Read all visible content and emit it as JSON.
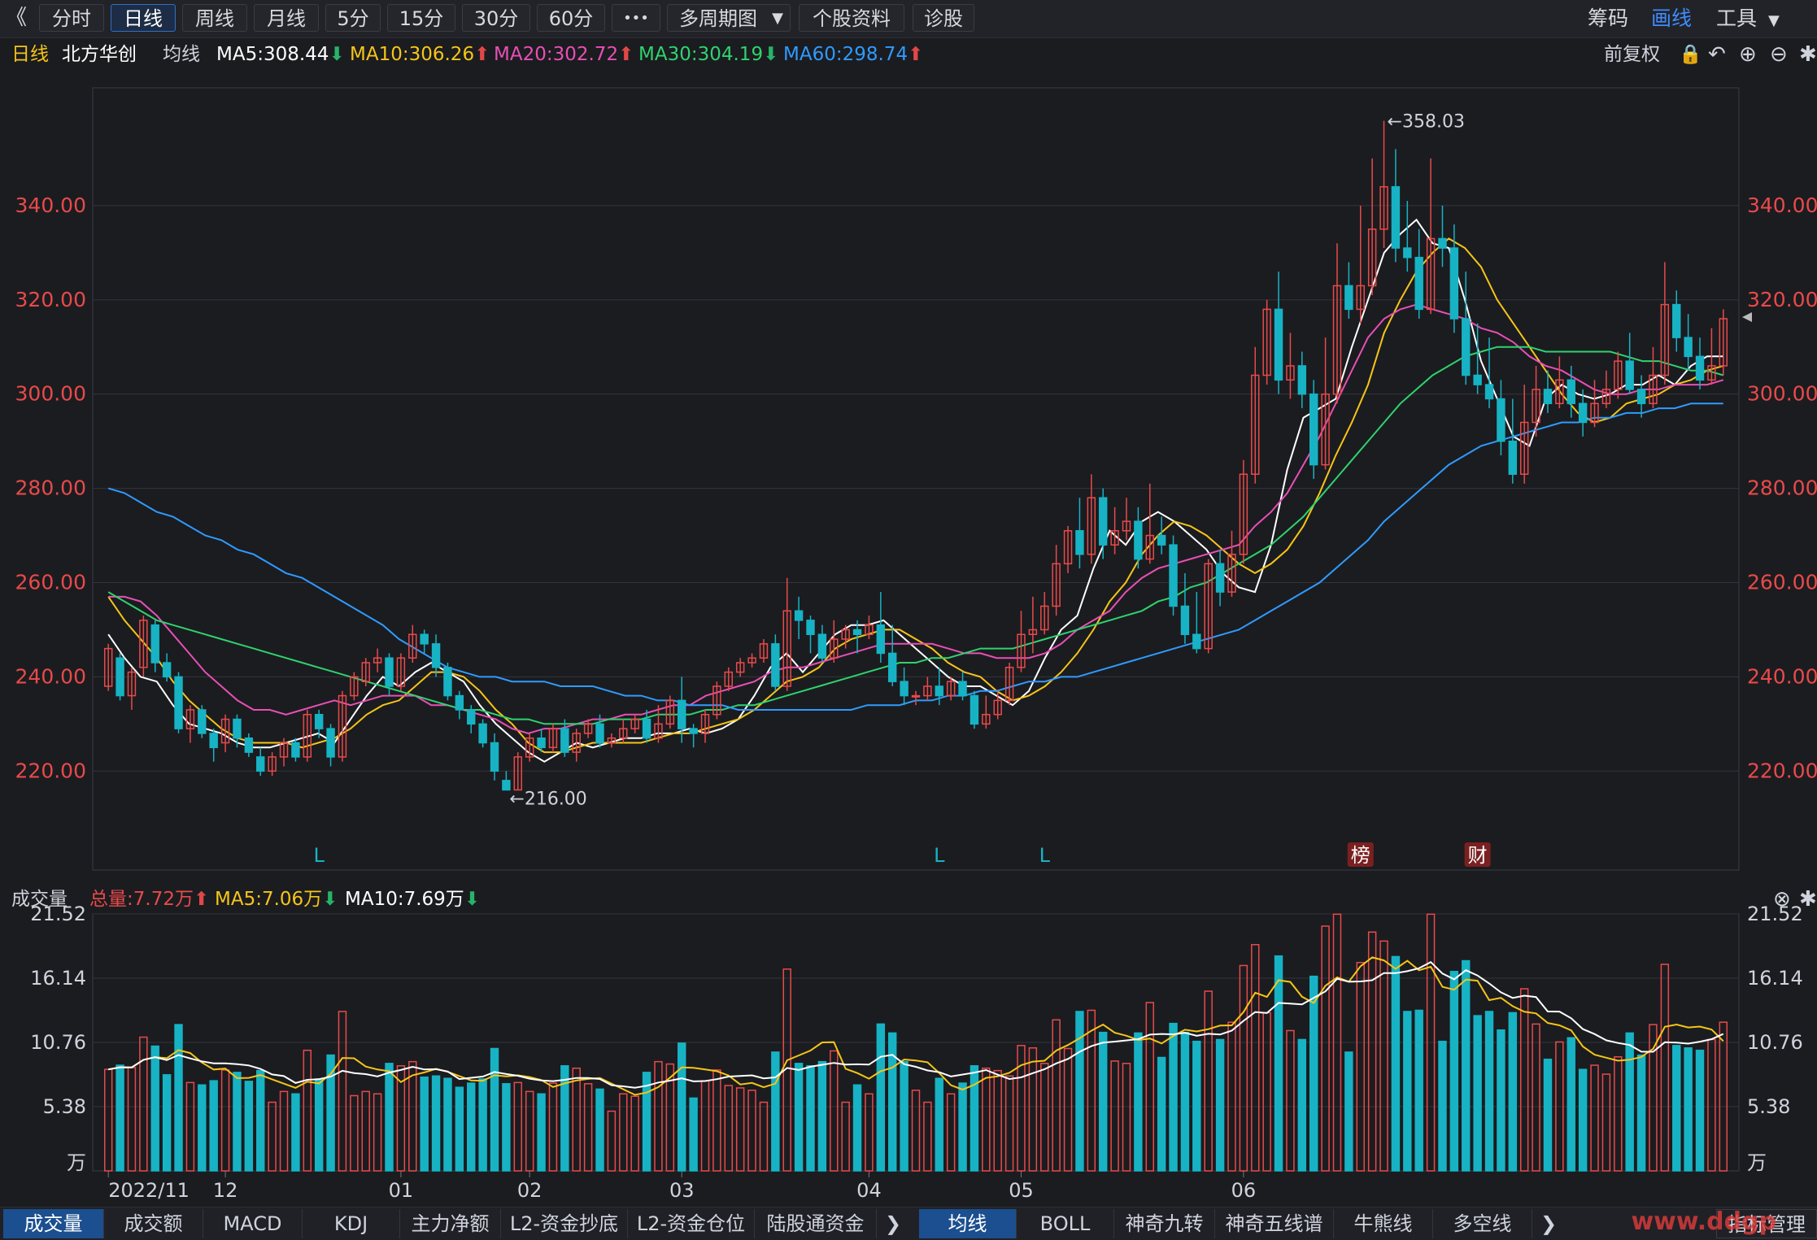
{
  "toolbar": {
    "collapse": "《",
    "periods": [
      "分时",
      "日线",
      "周线",
      "月线",
      "5分",
      "15分",
      "30分",
      "60分"
    ],
    "active_period": "日线",
    "more": "•••",
    "multi_period": "多周期图",
    "stock_info": "个股资料",
    "diagnose": "诊股",
    "right_items": [
      "筹码",
      "画线",
      "工具"
    ]
  },
  "header": {
    "period_label": "日线",
    "stock_name": "北方华创",
    "avg_label": "均线",
    "ma": [
      {
        "label": "MA5:308.44",
        "dir": "down",
        "color": "#ffffff"
      },
      {
        "label": "MA10:306.26",
        "dir": "up",
        "color": "#f5c518"
      },
      {
        "label": "MA20:302.72",
        "dir": "up",
        "color": "#e84fb5"
      },
      {
        "label": "MA30:304.19",
        "dir": "down",
        "color": "#2fd36e"
      },
      {
        "label": "MA60:298.74",
        "dir": "up",
        "color": "#2f9bff"
      }
    ],
    "adjust": "前复权"
  },
  "volume_header": {
    "title": "成交量",
    "total": "总量:7.72万",
    "ma5": "MA5:7.06万",
    "ma10": "MA10:7.69万"
  },
  "bottom_tabs_left": [
    "成交量",
    "成交额",
    "MACD",
    "KDJ",
    "主力净额",
    "L2-资金抄底",
    "L2-资金仓位",
    "陆股通资金"
  ],
  "bottom_tabs_right": [
    "均线",
    "BOLL",
    "神奇九转",
    "神奇五线谱",
    "牛熊线",
    "多空线"
  ],
  "bottom_tabs_more": "指标管理",
  "watermark": "www.ddgp",
  "chart_data": {
    "type": "candlestick",
    "price_axis": {
      "ticks": [
        "340.00",
        "320.00",
        "300.00",
        "280.00",
        "260.00",
        "240.00",
        "220.00"
      ],
      "ylim": [
        199,
        365
      ]
    },
    "volume_axis": {
      "ticks": [
        "21.52",
        "16.14",
        "10.76",
        "5.38"
      ],
      "unit": "万",
      "ylim": [
        0,
        21.52
      ]
    },
    "x_ticks": [
      "2022/11",
      "12",
      "01",
      "02",
      "03",
      "04",
      "05",
      "06"
    ],
    "annotations": {
      "high": "←358.03",
      "low": "←216.00",
      "markers": [
        "L",
        "L",
        "L",
        "榜",
        "财"
      ]
    },
    "colors": {
      "up": "#e84a4a",
      "down": "#17b3c4",
      "ma5": "#ffffff",
      "ma10": "#f5c518",
      "ma20": "#e84fb5",
      "ma30": "#2fd36e",
      "ma60": "#2f9bff"
    },
    "series": [
      {
        "name": "MA5",
        "values": [
          249,
          244,
          240,
          239,
          234,
          230,
          229,
          228,
          226,
          225,
          225,
          226,
          227,
          228,
          226,
          231,
          236,
          240,
          238,
          241,
          243,
          241,
          239,
          234,
          230,
          227,
          224,
          222,
          224,
          226,
          225,
          226,
          227,
          227,
          228,
          228,
          229,
          228,
          229,
          231,
          236,
          242,
          245,
          241,
          245,
          249,
          251,
          251,
          252,
          249,
          246,
          243,
          240,
          238,
          238,
          236,
          234,
          237,
          244,
          250,
          253,
          263,
          271,
          268,
          273,
          275,
          273,
          270,
          267,
          262,
          259,
          258,
          268,
          284,
          295,
          297,
          299,
          310,
          320,
          330,
          334,
          337,
          332,
          331,
          320,
          307,
          299,
          291,
          289,
          299,
          302,
          300,
          299,
          300,
          302,
          302,
          304,
          302,
          306,
          308,
          308
        ]
      },
      {
        "name": "MA10",
        "values": [
          257,
          252,
          248,
          244,
          239,
          235,
          232,
          229,
          227,
          226,
          226,
          226,
          225,
          226,
          227,
          229,
          232,
          234,
          235,
          238,
          241,
          241,
          240,
          237,
          233,
          230,
          226,
          224,
          224,
          225,
          226,
          226,
          226,
          226,
          227,
          228,
          228,
          229,
          230,
          231,
          233,
          236,
          239,
          240,
          242,
          246,
          248,
          249,
          250,
          250,
          248,
          246,
          243,
          241,
          240,
          237,
          235,
          236,
          238,
          241,
          245,
          250,
          256,
          260,
          266,
          270,
          273,
          272,
          270,
          267,
          264,
          262,
          264,
          267,
          272,
          279,
          287,
          294,
          302,
          313,
          320,
          326,
          330,
          333,
          331,
          327,
          320,
          315,
          310,
          305,
          300,
          296,
          294,
          295,
          298,
          299,
          300,
          302,
          303,
          305,
          306
        ]
      },
      {
        "name": "MA20",
        "values": [
          257,
          257,
          256,
          253,
          249,
          245,
          241,
          238,
          235,
          233,
          233,
          232,
          233,
          234,
          235,
          234,
          235,
          236,
          236,
          236,
          234,
          234,
          233,
          232,
          231,
          229,
          228,
          229,
          229,
          230,
          231,
          231,
          232,
          232,
          233,
          234,
          234,
          236,
          237,
          238,
          239,
          241,
          242,
          242,
          243,
          244,
          245,
          246,
          247,
          247,
          247,
          247,
          246,
          245,
          245,
          244,
          244,
          244,
          245,
          247,
          250,
          252,
          254,
          258,
          261,
          263,
          264,
          265,
          266,
          267,
          268,
          272,
          275,
          279,
          285,
          291,
          298,
          305,
          312,
          316,
          318,
          319,
          318,
          317,
          316,
          314,
          313,
          311,
          308,
          306,
          305,
          303,
          301,
          300,
          300,
          301,
          301,
          302,
          302,
          302,
          303
        ]
      },
      {
        "name": "MA30",
        "values": [
          258,
          256,
          254,
          252,
          251,
          250,
          249,
          248,
          247,
          246,
          245,
          244,
          243,
          242,
          241,
          240,
          239,
          238,
          237,
          236,
          235,
          234,
          233,
          233,
          232,
          231,
          231,
          230,
          230,
          230,
          230,
          231,
          231,
          231,
          232,
          232,
          232,
          233,
          233,
          234,
          234,
          235,
          236,
          237,
          238,
          239,
          240,
          241,
          242,
          243,
          243,
          244,
          244,
          245,
          246,
          246,
          246,
          247,
          248,
          249,
          250,
          251,
          252,
          253,
          254,
          256,
          257,
          259,
          260,
          262,
          264,
          266,
          268,
          271,
          274,
          278,
          282,
          286,
          290,
          294,
          298,
          301,
          304,
          306,
          308,
          309,
          310,
          310,
          310,
          309,
          309,
          309,
          309,
          309,
          308,
          307,
          307,
          306,
          305,
          305,
          304
        ]
      },
      {
        "name": "MA60",
        "values": [
          280,
          279,
          277,
          275,
          274,
          272,
          270,
          269,
          267,
          266,
          264,
          262,
          261,
          259,
          257,
          255,
          253,
          251,
          248,
          246,
          244,
          242,
          241,
          240,
          240,
          239,
          239,
          239,
          238,
          238,
          238,
          237,
          236,
          236,
          235,
          235,
          234,
          234,
          234,
          233,
          233,
          233,
          233,
          233,
          233,
          233,
          233,
          234,
          234,
          234,
          235,
          235,
          236,
          236,
          237,
          237,
          238,
          239,
          239,
          240,
          240,
          241,
          242,
          243,
          244,
          245,
          246,
          247,
          248,
          249,
          250,
          252,
          254,
          256,
          258,
          260,
          263,
          266,
          269,
          273,
          276,
          279,
          282,
          285,
          287,
          289,
          290,
          291,
          292,
          293,
          294,
          294,
          295,
          295,
          296,
          296,
          297,
          297,
          298,
          298,
          298
        ]
      }
    ],
    "candles": [
      [
        238,
        246,
        237,
        247
      ],
      [
        244,
        236,
        235,
        245
      ],
      [
        236,
        241,
        233,
        242
      ],
      [
        242,
        252,
        240,
        253
      ],
      [
        251,
        243,
        241,
        252
      ],
      [
        243,
        240,
        239,
        245
      ],
      [
        240,
        229,
        228,
        241
      ],
      [
        229,
        233,
        226,
        234
      ],
      [
        233,
        228,
        227,
        234
      ],
      [
        228,
        225,
        222,
        229
      ],
      [
        226,
        231,
        224,
        232
      ],
      [
        231,
        227,
        225,
        232
      ],
      [
        227,
        224,
        223,
        228
      ],
      [
        223,
        220,
        219,
        225
      ],
      [
        220,
        223,
        219,
        224
      ],
      [
        223,
        226,
        221,
        227
      ],
      [
        226,
        223,
        222,
        227
      ],
      [
        223,
        232,
        222,
        233
      ],
      [
        232,
        229,
        227,
        233
      ],
      [
        229,
        223,
        221,
        230
      ],
      [
        223,
        236,
        222,
        237
      ],
      [
        236,
        240,
        235,
        241
      ],
      [
        239,
        243,
        238,
        244
      ],
      [
        243,
        244,
        241,
        246
      ],
      [
        244,
        238,
        236,
        245
      ],
      [
        238,
        244,
        237,
        245
      ],
      [
        244,
        249,
        243,
        251
      ],
      [
        249,
        247,
        245,
        250
      ],
      [
        247,
        242,
        240,
        249
      ],
      [
        242,
        236,
        235,
        243
      ],
      [
        236,
        233,
        231,
        237
      ],
      [
        233,
        230,
        228,
        234
      ],
      [
        230,
        226,
        225,
        231
      ],
      [
        226,
        220,
        218,
        228
      ],
      [
        218,
        216,
        216,
        220
      ],
      [
        216,
        223,
        216,
        224
      ],
      [
        223,
        227,
        222,
        228
      ],
      [
        227,
        225,
        224,
        229
      ],
      [
        225,
        229,
        224,
        230
      ],
      [
        229,
        224,
        223,
        231
      ],
      [
        224,
        228,
        222,
        229
      ],
      [
        228,
        230,
        227,
        231
      ],
      [
        230,
        226,
        225,
        232
      ],
      [
        226,
        227,
        225,
        228
      ],
      [
        227,
        229,
        226,
        231
      ],
      [
        229,
        231,
        228,
        232
      ],
      [
        231,
        227,
        226,
        233
      ],
      [
        227,
        230,
        226,
        234
      ],
      [
        230,
        235,
        229,
        236
      ],
      [
        235,
        229,
        226,
        240
      ],
      [
        229,
        228,
        225,
        230
      ],
      [
        228,
        232,
        226,
        233
      ],
      [
        232,
        238,
        231,
        239
      ],
      [
        238,
        241,
        237,
        242
      ],
      [
        241,
        243,
        240,
        244
      ],
      [
        243,
        244,
        242,
        245
      ],
      [
        244,
        247,
        243,
        248
      ],
      [
        247,
        238,
        237,
        249
      ],
      [
        238,
        254,
        237,
        261
      ],
      [
        254,
        252,
        248,
        257
      ],
      [
        252,
        249,
        245,
        253
      ],
      [
        249,
        244,
        243,
        251
      ],
      [
        244,
        248,
        243,
        252
      ],
      [
        248,
        250,
        246,
        251
      ],
      [
        250,
        249,
        245,
        252
      ],
      [
        249,
        251,
        248,
        253
      ],
      [
        251,
        245,
        243,
        258
      ],
      [
        245,
        239,
        238,
        251
      ],
      [
        239,
        236,
        234,
        242
      ],
      [
        236,
        236,
        234,
        237
      ],
      [
        236,
        238,
        235,
        240
      ],
      [
        238,
        236,
        234,
        242
      ],
      [
        236,
        239,
        235,
        240
      ],
      [
        239,
        236,
        235,
        241
      ],
      [
        236,
        230,
        229,
        237
      ],
      [
        230,
        232,
        229,
        236
      ],
      [
        232,
        235,
        231,
        237
      ],
      [
        235,
        242,
        234,
        243
      ],
      [
        242,
        249,
        241,
        254
      ],
      [
        249,
        250,
        245,
        257
      ],
      [
        250,
        255,
        249,
        258
      ],
      [
        255,
        264,
        253,
        268
      ],
      [
        264,
        271,
        262,
        272
      ],
      [
        271,
        266,
        263,
        278
      ],
      [
        266,
        278,
        264,
        283
      ],
      [
        278,
        268,
        265,
        280
      ],
      [
        268,
        271,
        266,
        276
      ],
      [
        271,
        273,
        269,
        278
      ],
      [
        273,
        265,
        263,
        276
      ],
      [
        265,
        270,
        264,
        281
      ],
      [
        270,
        268,
        266,
        274
      ],
      [
        268,
        255,
        253,
        270
      ],
      [
        255,
        249,
        247,
        262
      ],
      [
        249,
        246,
        245,
        258
      ],
      [
        246,
        264,
        245,
        265
      ],
      [
        264,
        258,
        255,
        267
      ],
      [
        258,
        266,
        257,
        271
      ],
      [
        266,
        283,
        264,
        286
      ],
      [
        283,
        304,
        281,
        310
      ],
      [
        304,
        318,
        302,
        320
      ],
      [
        318,
        303,
        300,
        326
      ],
      [
        303,
        306,
        299,
        313
      ],
      [
        306,
        300,
        297,
        309
      ],
      [
        300,
        285,
        282,
        303
      ],
      [
        285,
        300,
        284,
        312
      ],
      [
        300,
        323,
        298,
        332
      ],
      [
        323,
        318,
        316,
        328
      ],
      [
        318,
        323,
        315,
        340
      ],
      [
        323,
        335,
        321,
        350
      ],
      [
        335,
        344,
        331,
        358
      ],
      [
        344,
        331,
        328,
        352
      ],
      [
        331,
        329,
        326,
        341
      ],
      [
        329,
        318,
        316,
        335
      ],
      [
        318,
        333,
        317,
        350
      ],
      [
        333,
        331,
        327,
        340
      ],
      [
        331,
        316,
        313,
        336
      ],
      [
        316,
        304,
        302,
        326
      ],
      [
        304,
        302,
        300,
        315
      ],
      [
        302,
        299,
        297,
        312
      ],
      [
        299,
        290,
        287,
        303
      ],
      [
        290,
        283,
        281,
        299
      ],
      [
        283,
        294,
        281,
        302
      ],
      [
        294,
        301,
        291,
        306
      ],
      [
        301,
        298,
        296,
        305
      ],
      [
        298,
        303,
        297,
        308
      ],
      [
        303,
        298,
        295,
        306
      ],
      [
        298,
        294,
        291,
        301
      ],
      [
        294,
        298,
        293,
        303
      ],
      [
        298,
        301,
        297,
        305
      ],
      [
        301,
        307,
        299,
        309
      ],
      [
        307,
        301,
        300,
        313
      ],
      [
        301,
        298,
        295,
        304
      ],
      [
        298,
        304,
        297,
        310
      ],
      [
        304,
        319,
        302,
        328
      ],
      [
        319,
        312,
        309,
        322
      ],
      [
        312,
        308,
        305,
        317
      ],
      [
        308,
        303,
        301,
        312
      ],
      [
        303,
        306,
        302,
        314
      ],
      [
        306,
        316,
        304,
        318
      ]
    ]
  }
}
